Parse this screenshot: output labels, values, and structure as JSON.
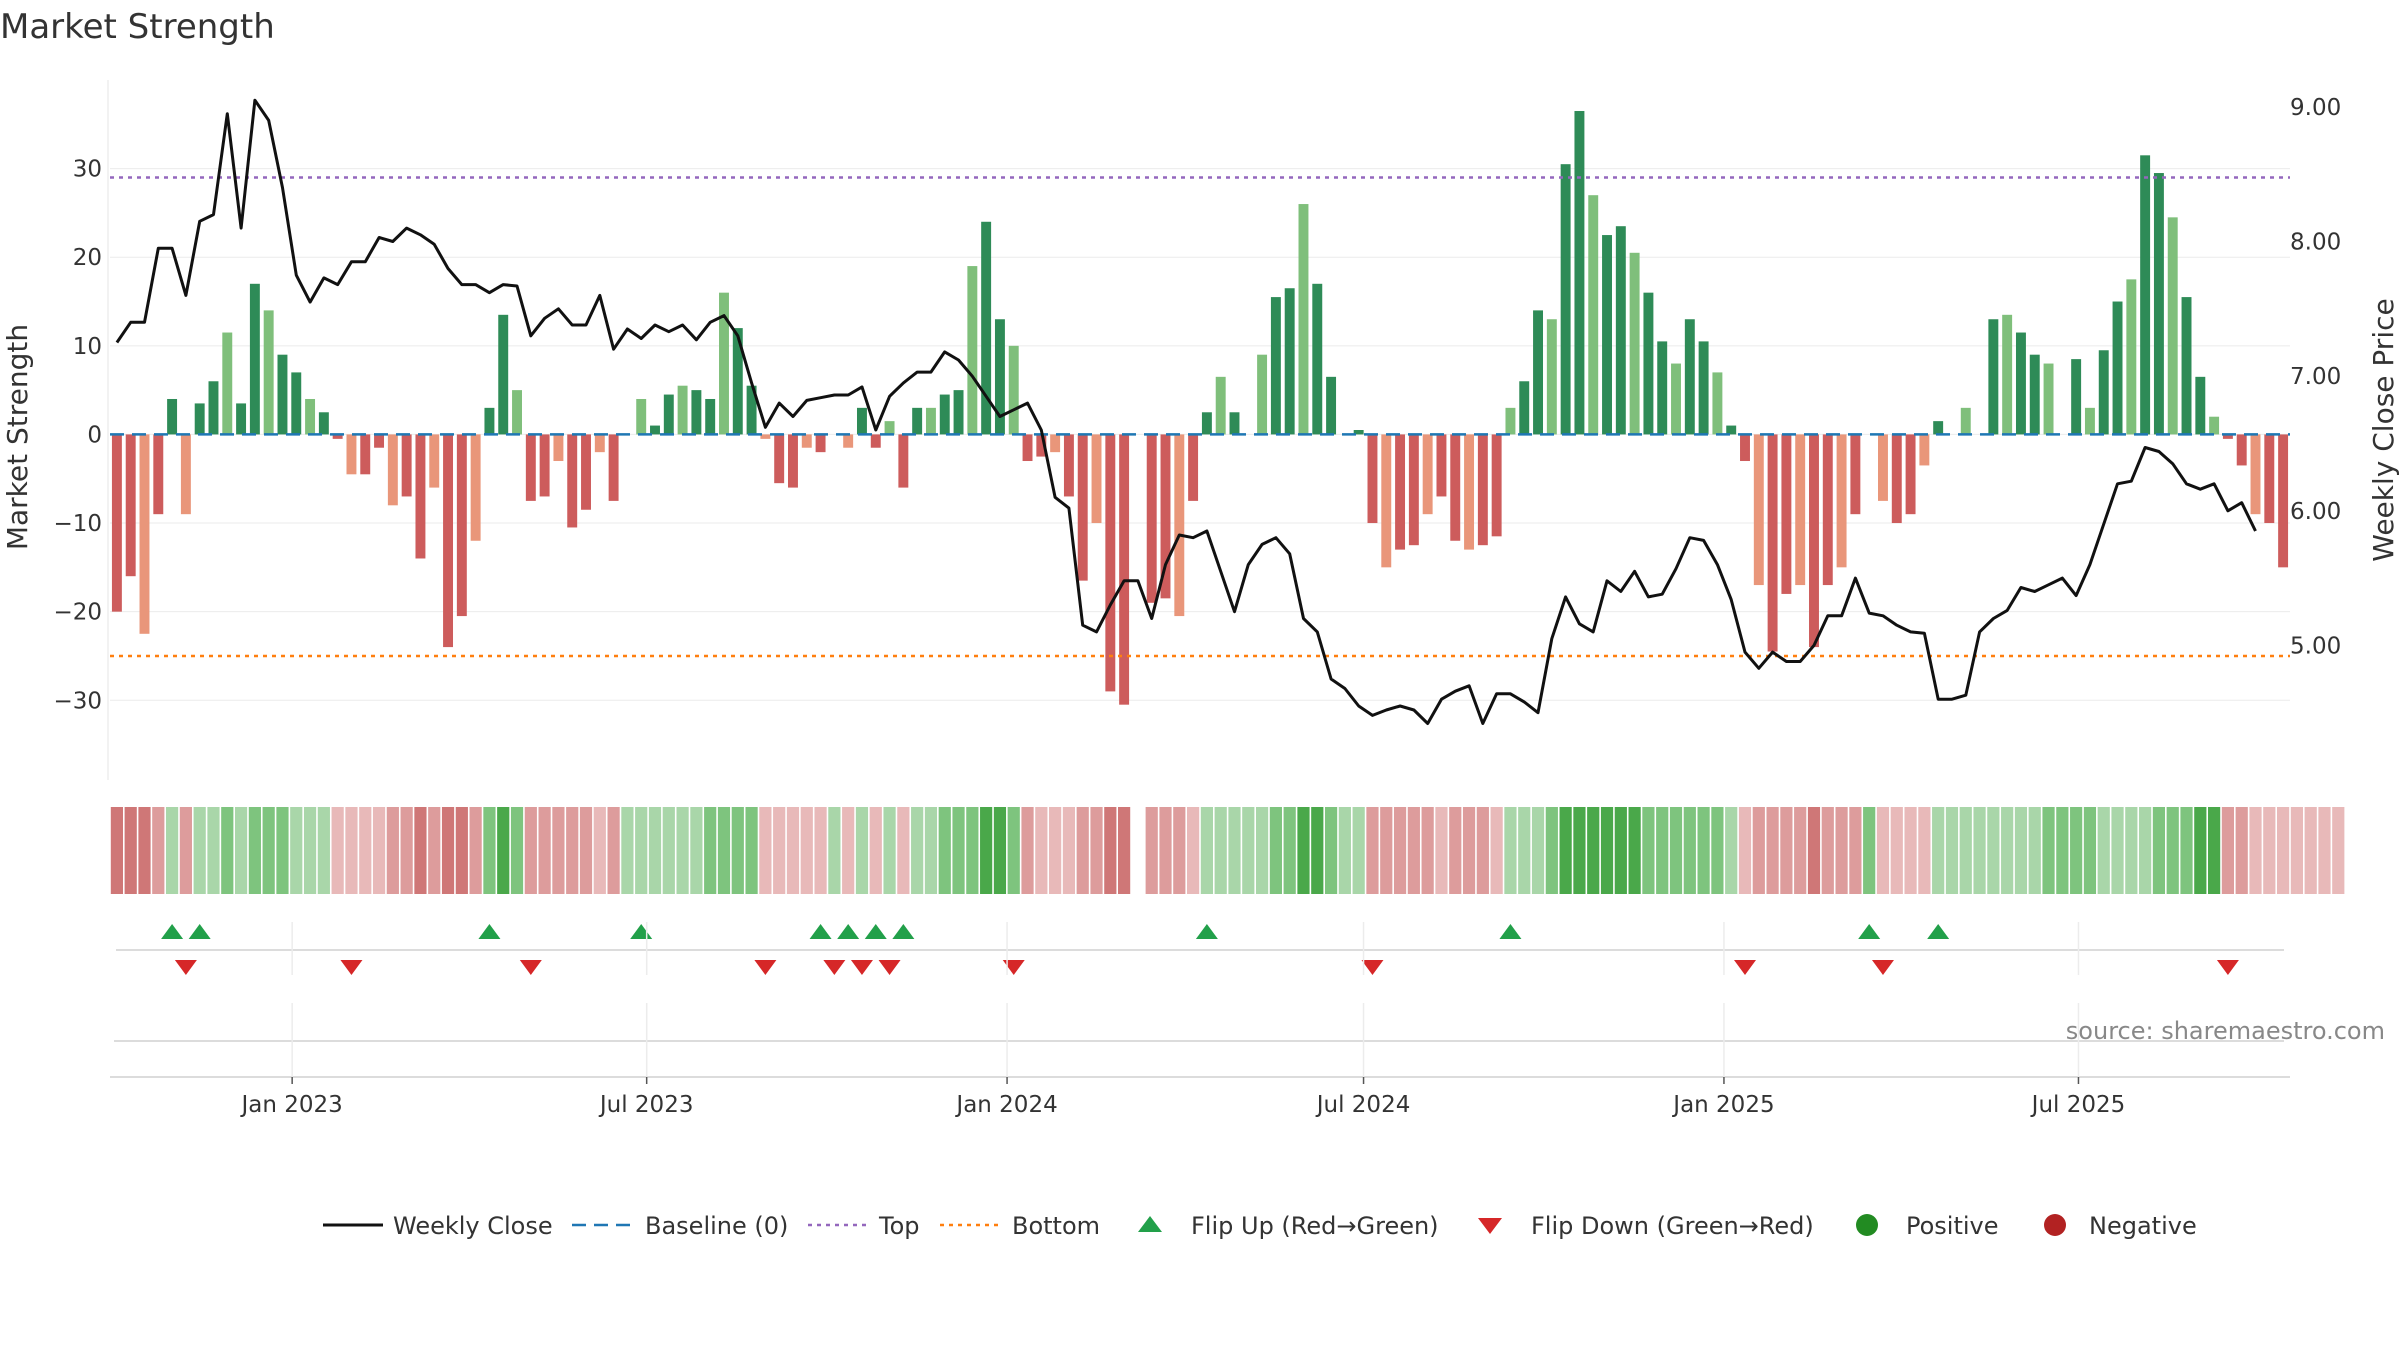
{
  "chart_data": {
    "type": "bar",
    "title": "Market Strength",
    "ylabel": "Market Strength",
    "ylabel_right": "Weekly Close Price",
    "ylim": [
      -39,
      40
    ],
    "ylim_right": [
      4.0,
      9.2
    ],
    "yticks": [
      30,
      20,
      10,
      0,
      -10,
      -20,
      -30
    ],
    "ytick_labels": [
      "30",
      "20",
      "10",
      "0",
      "−10",
      "−20",
      "−30"
    ],
    "yticks_right": [
      9.0,
      8.0,
      7.0,
      6.0,
      5.0
    ],
    "ytick_labels_right": [
      "9.00",
      "8.00",
      "7.00",
      "6.00",
      "5.00"
    ],
    "x_start": "2022-09-30",
    "x_end": "2025-10-17",
    "xticks": [
      "2023-01-01",
      "2023-07-01",
      "2024-01-01",
      "2024-07-01",
      "2025-01-01",
      "2025-07-01"
    ],
    "xtick_labels": [
      "Jan 2023",
      "Jul 2023",
      "Jan 2024",
      "Jul 2024",
      "Jan 2025",
      "Jul 2025"
    ],
    "top_line": 29,
    "bottom_line": -25,
    "grid": true,
    "legend_position": "bottom",
    "source": "source: sharemaestro.com",
    "legend": [
      {
        "label": "Weekly Close",
        "kind": "line",
        "color": "#111111"
      },
      {
        "label": "Baseline (0)",
        "kind": "dash",
        "color": "#1f77b4"
      },
      {
        "label": "Top",
        "kind": "dot",
        "color": "#9467bd"
      },
      {
        "label": "Bottom",
        "kind": "dot",
        "color": "#ff7f0e"
      },
      {
        "label": "Flip Up (Red→Green)",
        "kind": "tri-up",
        "color": "#22a04a"
      },
      {
        "label": "Flip Down (Green→Red)",
        "kind": "tri-down",
        "color": "#d62728"
      },
      {
        "label": "Positive",
        "kind": "circle",
        "color": "#228b22"
      },
      {
        "label": "Negative",
        "kind": "circle",
        "color": "#b22222"
      }
    ],
    "colors": {
      "pos_strong": "#2e8b57",
      "pos_light": "#7fbf7b",
      "neg_strong": "#cd5c5c",
      "neg_light": "#e9967a",
      "baseline": "#1f77b4",
      "top": "#9467bd",
      "bottom": "#ff7f0e",
      "close": "#111111",
      "flip_up": "#22a04a",
      "flip_down": "#d62728"
    },
    "series": [
      {
        "name": "Market Strength",
        "values": [
          -20,
          -16,
          -22.5,
          -9,
          4,
          -9,
          3.5,
          6,
          11.5,
          3.5,
          17,
          14,
          9,
          7,
          4,
          2.5,
          -0.5,
          -4.5,
          -4.5,
          -1.5,
          -8,
          -7,
          -14,
          -6,
          -24,
          -20.5,
          -12,
          3,
          13.5,
          5,
          -7.5,
          -7,
          -3,
          -10.5,
          -8.5,
          -2,
          -7.5,
          0,
          4,
          1,
          4.5,
          5.5,
          5,
          4,
          16,
          12,
          5.5,
          -0.5,
          -5.5,
          -6,
          -1.5,
          -2,
          0,
          -1.5,
          3,
          -1.5,
          1.5,
          -6,
          3,
          3,
          4.5,
          5,
          19,
          24,
          13,
          10,
          -3,
          -2.5,
          -2,
          -7,
          -16.5,
          -10,
          -29,
          -30.5,
          0,
          -19,
          -18.5,
          -20.5,
          -7.5,
          2.5,
          6.5,
          2.5,
          0,
          9,
          15.5,
          16.5,
          26,
          17,
          6.5,
          0,
          0.5,
          -10,
          -15,
          -13,
          -12.5,
          -9,
          -7,
          -12,
          -13,
          -12.5,
          -11.5,
          3,
          6,
          14,
          13,
          30.5,
          36.5,
          27,
          22.5,
          23.5,
          20.5,
          16,
          10.5,
          8,
          13,
          10.5,
          7,
          1,
          -3,
          -17,
          -24.5,
          -18,
          -17,
          -24,
          -17,
          -15,
          -9,
          0,
          -7.5,
          -10,
          -9,
          -3.5,
          1.5,
          0,
          3,
          0,
          13,
          13.5,
          11.5,
          9,
          8,
          0,
          8.5,
          3,
          9.5,
          15,
          17.5,
          31.5,
          29.5,
          24.5,
          15.5,
          6.5,
          2,
          -0.5,
          -3.5,
          -9,
          -10,
          -15
        ]
      },
      {
        "name": "Weekly Close",
        "values": [
          7.25,
          7.4,
          7.4,
          7.95,
          7.95,
          7.6,
          8.15,
          8.2,
          8.95,
          8.1,
          9.05,
          8.9,
          8.4,
          7.75,
          7.55,
          7.73,
          7.68,
          7.85,
          7.85,
          8.03,
          8.0,
          8.1,
          8.05,
          7.98,
          7.8,
          7.68,
          7.68,
          7.62,
          7.68,
          7.67,
          7.3,
          7.43,
          7.5,
          7.38,
          7.38,
          7.6,
          7.2,
          7.35,
          7.28,
          7.38,
          7.33,
          7.38,
          7.27,
          7.4,
          7.45,
          7.3,
          6.95,
          6.62,
          6.8,
          6.7,
          6.82,
          6.84,
          6.86,
          6.86,
          6.92,
          6.6,
          6.85,
          6.95,
          7.03,
          7.03,
          7.18,
          7.12,
          7.0,
          6.85,
          6.7,
          6.75,
          6.8,
          6.6,
          6.1,
          6.02,
          5.15,
          5.1,
          5.3,
          5.48,
          5.48,
          5.2,
          5.6,
          5.82,
          5.8,
          5.85,
          5.55,
          5.25,
          5.6,
          5.75,
          5.8,
          5.68,
          5.2,
          5.1,
          4.75,
          4.68,
          4.55,
          4.48,
          4.52,
          4.55,
          4.52,
          4.42,
          4.6,
          4.66,
          4.7,
          4.42,
          4.64,
          4.64,
          4.58,
          4.5,
          5.05,
          5.36,
          5.16,
          5.1,
          5.48,
          5.4,
          5.55,
          5.36,
          5.38,
          5.57,
          5.8,
          5.78,
          5.6,
          5.34,
          4.95,
          4.83,
          4.95,
          4.88,
          4.88,
          5.0,
          5.22,
          5.22,
          5.5,
          5.24,
          5.22,
          5.15,
          5.1,
          5.09,
          4.6,
          4.6,
          4.63,
          5.1,
          5.2,
          5.26,
          5.43,
          5.4,
          5.45,
          5.5,
          5.37,
          5.6,
          5.9,
          6.2,
          6.22,
          6.47,
          6.44,
          6.35,
          6.2,
          6.16,
          6.2,
          6.0,
          6.06,
          5.85
        ]
      }
    ],
    "regime_strip": [
      3,
      3,
      3,
      2,
      1,
      2,
      1,
      1,
      2,
      1,
      2,
      2,
      2,
      1,
      1,
      1,
      1,
      1,
      1,
      1,
      2,
      2,
      3,
      2,
      3,
      3,
      2,
      2,
      3,
      2,
      2,
      2,
      2,
      2,
      2,
      1,
      2,
      1,
      1,
      1,
      1,
      1,
      1,
      2,
      2,
      2,
      2,
      1,
      1,
      1,
      1,
      1,
      1,
      1,
      1,
      1,
      1,
      1,
      1,
      1,
      2,
      2,
      2,
      3,
      3,
      2,
      2,
      1,
      1,
      1,
      2,
      2,
      3,
      3,
      -1,
      2,
      2,
      2,
      1,
      1,
      1,
      1,
      1,
      1,
      2,
      2,
      3,
      3,
      2,
      1,
      1,
      2,
      2,
      2,
      2,
      2,
      1,
      2,
      2,
      2,
      1,
      1,
      1,
      1,
      2,
      3,
      3,
      3,
      3,
      3,
      3,
      2,
      2,
      2,
      2,
      2,
      2,
      1,
      1,
      2,
      2,
      2,
      2,
      3,
      2,
      2,
      2,
      2,
      1,
      1,
      1,
      1,
      1,
      1,
      1,
      1,
      1,
      1,
      1,
      1,
      2,
      2,
      2,
      2,
      1,
      1,
      1,
      1,
      2,
      2,
      2,
      3,
      3,
      2,
      2,
      1,
      1,
      1,
      1,
      1,
      1,
      1
    ],
    "flip_up_idx": [
      4,
      6,
      27,
      38,
      51,
      53,
      55,
      57,
      79,
      101,
      127,
      132
    ],
    "flip_down_idx": [
      5,
      17,
      30,
      47,
      52,
      54,
      56,
      65,
      91,
      118,
      128,
      153
    ]
  }
}
